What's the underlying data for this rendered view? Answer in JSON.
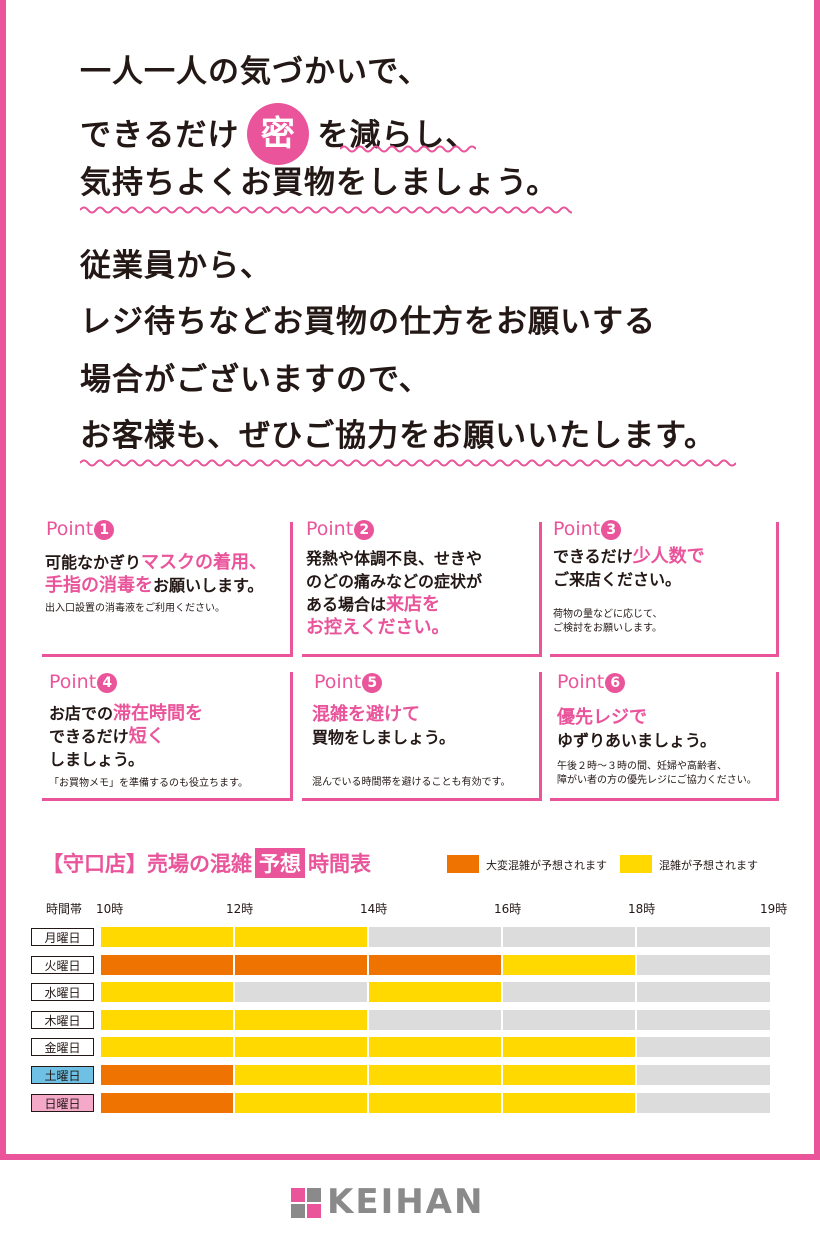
{
  "headline": {
    "line1": "一人一人の気づかいで、",
    "line2_pre": "できるだけ",
    "line2_badge": "密",
    "line2_post": "を減らし、",
    "line3": "気持ちよくお買物をしましょう。"
  },
  "message": {
    "line1": "従業員から、",
    "line2": "レジ待ちなどお買物の仕方をお願いする",
    "line3": "場合がございますので、",
    "line4": "お客様も、ぜひご協力をお願いいたします。"
  },
  "points": [
    {
      "label": "Point",
      "num": "1",
      "segments": [
        {
          "t": "可能なかぎり",
          "h": false
        },
        {
          "t": "マスクの着用、\n手指の消毒を",
          "h": true
        },
        {
          "t": "お願いします。",
          "h": false
        }
      ],
      "sub": "出入口設置の消毒液をご利用ください。"
    },
    {
      "label": "Point",
      "num": "2",
      "segments": [
        {
          "t": "発熱や体調不良、せきや\nのどの痛みなどの症状が\nある場合は",
          "h": false
        },
        {
          "t": "来店を\nお控えください。",
          "h": true
        }
      ],
      "sub": ""
    },
    {
      "label": "Point",
      "num": "3",
      "segments": [
        {
          "t": "できるだけ",
          "h": false
        },
        {
          "t": "少人数で",
          "h": true
        },
        {
          "t": "\nご来店ください。",
          "h": false
        }
      ],
      "sub": "荷物の量などに応じて、\nご検討をお願いします。"
    },
    {
      "label": "Point",
      "num": "4",
      "segments": [
        {
          "t": "お店での",
          "h": false
        },
        {
          "t": "滞在時間を",
          "h": true
        },
        {
          "t": "\nできるだけ",
          "h": false
        },
        {
          "t": "短く",
          "h": true
        },
        {
          "t": "\nしましょう。",
          "h": false
        }
      ],
      "sub": "「お買物メモ」を準備するのも役立ちます。"
    },
    {
      "label": "Point",
      "num": "5",
      "segments": [
        {
          "t": "混雑を避けて",
          "h": true
        },
        {
          "t": "\n買物をしましょう。",
          "h": false
        }
      ],
      "sub": "混んでいる時間帯を避けることも有効です。"
    },
    {
      "label": "Point",
      "num": "6",
      "segments": [
        {
          "t": "優先レジで",
          "h": true
        },
        {
          "t": "\nゆずりあいましょう。",
          "h": false
        }
      ],
      "sub": "午後２時～３時の間、妊婦や高齢者、\n障がい者の方の優先レジにご協力ください。"
    }
  ],
  "schedule": {
    "title_pre": "【守口店】売場の混雑",
    "title_badge": "予想",
    "title_post": "時間表",
    "legend": [
      {
        "label": "大変混雑が予想されます",
        "color": "#ee7300"
      },
      {
        "label": "混雑が予想されます",
        "color": "#ffd900"
      }
    ],
    "time_header": "時間帯",
    "ticks": [
      "10時",
      "12時",
      "14時",
      "16時",
      "18時",
      "19時"
    ],
    "colors": {
      "very": "#ee7300",
      "busy": "#ffd900",
      "none": "#dcdcdc",
      "sat": "#6ec1e4",
      "sun": "#f5a9c8"
    },
    "days": [
      {
        "label": "月曜日",
        "slots": [
          "busy",
          "busy",
          "none",
          "none",
          "none"
        ]
      },
      {
        "label": "火曜日",
        "slots": [
          "very",
          "very",
          "very",
          "busy",
          "none"
        ]
      },
      {
        "label": "水曜日",
        "slots": [
          "busy",
          "none",
          "busy",
          "none",
          "none"
        ]
      },
      {
        "label": "木曜日",
        "slots": [
          "busy",
          "busy",
          "none",
          "none",
          "none"
        ]
      },
      {
        "label": "金曜日",
        "slots": [
          "busy",
          "busy",
          "busy",
          "busy",
          "none"
        ]
      },
      {
        "label": "土曜日",
        "slots": [
          "very",
          "busy",
          "busy",
          "busy",
          "none"
        ],
        "bg": "sat"
      },
      {
        "label": "日曜日",
        "slots": [
          "very",
          "busy",
          "busy",
          "busy",
          "none"
        ],
        "bg": "sun"
      }
    ]
  },
  "logo": {
    "text": "KEIHAN"
  }
}
